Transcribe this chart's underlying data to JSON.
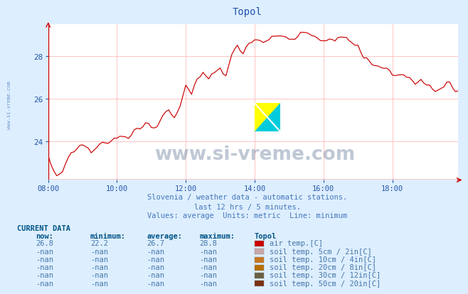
{
  "title": "Topol",
  "title_color": "#2255aa",
  "bg_color": "#ddeeff",
  "plot_bg_color": "#ffffff",
  "grid_color": "#ffbbbb",
  "axis_color": "#cc0000",
  "tick_color": "#2255aa",
  "ylabel_ticks": [
    24,
    26,
    28
  ],
  "xtick_labels": [
    "08:00",
    "10:00",
    "12:00",
    "14:00",
    "16:00",
    "18:00"
  ],
  "xmin": 0,
  "xmax": 143,
  "ymin": 22.2,
  "ymax": 29.5,
  "line_color": "#cc0000",
  "watermark_text": "www.si-vreme.com",
  "watermark_color": "#1a3a6b",
  "watermark_alpha": 0.28,
  "subtitle1": "Slovenia / weather data - automatic stations.",
  "subtitle2": "last 12 hrs / 5 minutes.",
  "subtitle3": "Values: average  Units: metric  Line: minimum",
  "subtitle_color": "#4477bb",
  "sidebar_text": "www.si-vreme.com",
  "sidebar_color": "#4477bb",
  "current_data_label": "CURRENT DATA",
  "col_headers": [
    "now:",
    "minimum:",
    "average:",
    "maximum:",
    "Topol"
  ],
  "rows": [
    {
      "now": "26.8",
      "min": "22.2",
      "avg": "26.7",
      "max": "28.8",
      "color": "#cc0000",
      "label": "air temp.[C]"
    },
    {
      "now": "-nan",
      "min": "-nan",
      "avg": "-nan",
      "max": "-nan",
      "color": "#c8a8a8",
      "label": "soil temp. 5cm / 2in[C]"
    },
    {
      "now": "-nan",
      "min": "-nan",
      "avg": "-nan",
      "max": "-nan",
      "color": "#c87820",
      "label": "soil temp. 10cm / 4in[C]"
    },
    {
      "now": "-nan",
      "min": "-nan",
      "avg": "-nan",
      "max": "-nan",
      "color": "#b87000",
      "label": "soil temp. 20cm / 8in[C]"
    },
    {
      "now": "-nan",
      "min": "-nan",
      "avg": "-nan",
      "max": "-nan",
      "color": "#686040",
      "label": "soil temp. 30cm / 12in[C]"
    },
    {
      "now": "-nan",
      "min": "-nan",
      "avg": "-nan",
      "max": "-nan",
      "color": "#7a3010",
      "label": "soil temp. 50cm / 20in[C]"
    }
  ]
}
